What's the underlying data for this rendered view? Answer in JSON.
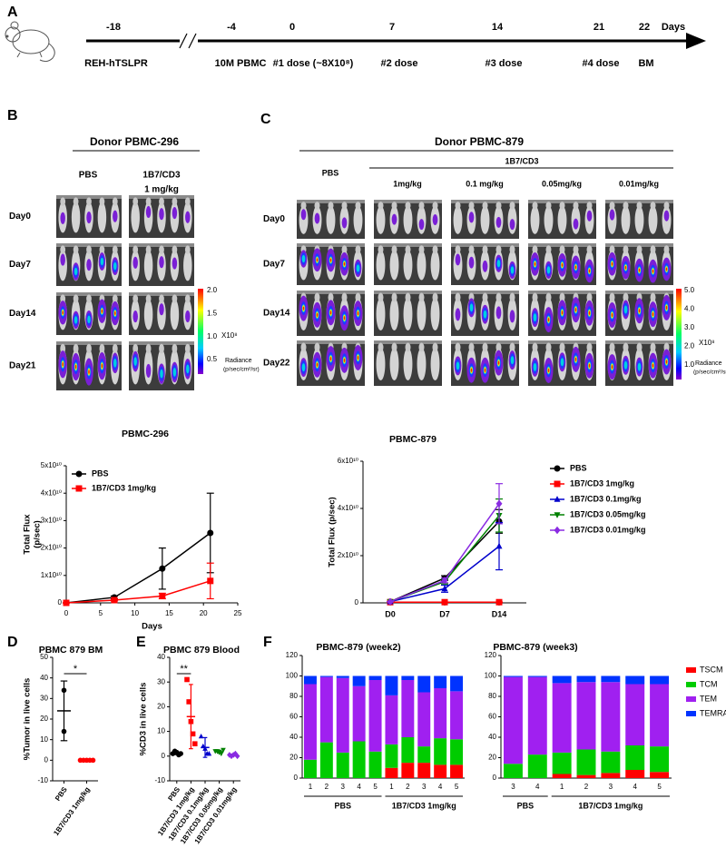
{
  "timeline": {
    "label": "A",
    "unit": "Days",
    "events": [
      {
        "day": "-18",
        "text": "REH-hTSLPR"
      },
      {
        "day": "-4",
        "text": "10M PBMC"
      },
      {
        "day": "0",
        "text": "#1 dose (~8X10⁸)"
      },
      {
        "day": "7",
        "text": "#2 dose"
      },
      {
        "day": "14",
        "text": "#3 dose"
      },
      {
        "day": "21",
        "text": "#4 dose"
      },
      {
        "day": "22",
        "text": "BM"
      }
    ]
  },
  "imaging": [
    {
      "label": "B",
      "title": "Donor PBMC-296",
      "columns": [
        "PBS",
        "1B7/CD3"
      ],
      "column_note": "1 mg/kg",
      "rows": [
        "Day0",
        "Day7",
        "Day14",
        "Day21"
      ],
      "colorbar": {
        "ticks": [
          "2.0",
          "1.5",
          "1.0",
          "0.5"
        ],
        "scale": "X10⁸",
        "label": "Radiance",
        "unit": "(p/sec/cm²/sr)"
      }
    },
    {
      "label": "C",
      "title": "Donor PBMC-879",
      "group": "1B7/CD3",
      "columns": [
        "PBS",
        "1mg/kg",
        "0.1 mg/kg",
        "0.05mg/kg",
        "0.01mg/kg"
      ],
      "rows": [
        "Day0",
        "Day7",
        "Day14",
        "Day22"
      ],
      "colorbar": {
        "ticks": [
          "5.0",
          "4.0",
          "3.0",
          "2.0",
          "1.0"
        ],
        "scale": "X10⁸",
        "label": "Radiance",
        "unit": "(p/sec/cm²/sr)"
      }
    }
  ],
  "chart_data": [
    {
      "type": "line",
      "title": "PBMC-296",
      "xlabel": "Days",
      "ylabel": [
        "Total Flux",
        "(p/sec)"
      ],
      "x": [
        0,
        7,
        14,
        21
      ],
      "xlim": [
        0,
        25
      ],
      "xticks": [
        0,
        5,
        10,
        15,
        20,
        25
      ],
      "ylim": [
        0,
        50000000000
      ],
      "yticks": [
        0,
        {
          "value": 10000000000,
          "label": "1x10¹⁰"
        },
        {
          "value": 20000000000,
          "label": "2x10¹⁰"
        },
        {
          "value": 30000000000,
          "label": "3x10¹⁰"
        },
        {
          "value": 40000000000,
          "label": "4x10¹⁰"
        },
        {
          "value": 50000000000,
          "label": "5x10¹⁰"
        }
      ],
      "legend": "upper left",
      "series": [
        {
          "name": "PBS",
          "color": "#000000",
          "marker": "circle",
          "values": [
            0,
            2000000000,
            12500000000,
            25500000000
          ],
          "errors": [
            0,
            500000000,
            7500000000,
            14500000000
          ]
        },
        {
          "name": "1B7/CD3 1mg/kg",
          "color": "#ff0000",
          "marker": "square",
          "values": [
            0,
            1000000000,
            2500000000,
            8000000000
          ],
          "errors": [
            0,
            300000000,
            1000000000,
            6500000000
          ]
        }
      ]
    },
    {
      "type": "line",
      "title": "PBMC-879",
      "ylabel": "Total Flux (p/sec)",
      "categories": [
        "D0",
        "D7",
        "D14"
      ],
      "ylim": [
        0,
        60000000000
      ],
      "yticks": [
        0,
        {
          "value": 20000000000,
          "label": "2x10¹⁰"
        },
        {
          "value": 40000000000,
          "label": "4x10¹⁰"
        },
        {
          "value": 60000000000,
          "label": "6x10¹⁰"
        }
      ],
      "legend": "right",
      "series": [
        {
          "name": "PBS",
          "color": "#000000",
          "marker": "circle",
          "values": [
            500000000,
            10500000000,
            34500000000
          ],
          "errors": [
            0,
            1000000000,
            5000000000
          ]
        },
        {
          "name": "1B7/CD3 1mg/kg",
          "color": "#ff0000",
          "marker": "square",
          "values": [
            300000000,
            300000000,
            300000000
          ],
          "errors": [
            0,
            0,
            0
          ]
        },
        {
          "name": "1B7/CD3 0.1mg/kg",
          "color": "#0000cc",
          "marker": "triangle-up",
          "values": [
            500000000,
            6000000000,
            24000000000
          ],
          "errors": [
            0,
            1500000000,
            10000000000
          ]
        },
        {
          "name": "1B7/CD3 0.05mg/kg",
          "color": "#008000",
          "marker": "triangle-down",
          "values": [
            500000000,
            9000000000,
            37000000000
          ],
          "errors": [
            0,
            1000000000,
            7000000000
          ]
        },
        {
          "name": "1B7/CD3 0.01mg/kg",
          "color": "#8a2be2",
          "marker": "diamond",
          "values": [
            500000000,
            9500000000,
            42000000000
          ],
          "errors": [
            0,
            1000000000,
            8500000000
          ]
        }
      ]
    },
    {
      "type": "dot",
      "panel": "D",
      "title": "PBMC 879 BM",
      "ylabel": "%Tumor in live cells",
      "categories": [
        "PBS",
        "1B7/CD3 1mg/kg"
      ],
      "ylim": [
        -10,
        50
      ],
      "yticks": [
        -10,
        0,
        10,
        20,
        30,
        40,
        50
      ],
      "annotation": "*",
      "groups": [
        {
          "color": "#000000",
          "marker": "circle",
          "values": [
            34,
            14
          ],
          "mean": 24,
          "sd": 14.5
        },
        {
          "color": "#ff0000",
          "marker": "circle",
          "values": [
            0,
            0,
            0,
            0,
            0
          ],
          "mean": 0,
          "sd": 0
        }
      ]
    },
    {
      "type": "dot",
      "panel": "E",
      "title": "PBMC 879 Blood",
      "ylabel": "%CD3 in live cells",
      "categories": [
        "PBS",
        "1B7/CD3 1mg/kg",
        "1B7/CD3 0.1mg/kg",
        "1B7/CD3 0.05mg/kg",
        "1B7/CD3 0.01mg/kg"
      ],
      "ylim": [
        -10,
        40
      ],
      "yticks": [
        -10,
        0,
        10,
        20,
        30,
        40
      ],
      "annotation": "**",
      "groups": [
        {
          "color": "#000000",
          "marker": "circle",
          "values": [
            1,
            2,
            1.5,
            0.5,
            1
          ],
          "mean": 1.2,
          "sd": 0.6
        },
        {
          "color": "#ff0000",
          "marker": "square",
          "values": [
            31,
            22,
            14,
            9,
            5
          ],
          "mean": 16,
          "sd": 13
        },
        {
          "color": "#0000cc",
          "marker": "triangle-up",
          "values": [
            8,
            4,
            3,
            1,
            1
          ],
          "mean": 3.5,
          "sd": 4
        },
        {
          "color": "#008000",
          "marker": "triangle-down",
          "values": [
            2,
            2,
            1.5,
            1,
            2.5
          ],
          "mean": 1.8,
          "sd": 0.6
        },
        {
          "color": "#8a2be2",
          "marker": "diamond",
          "values": [
            0.5,
            0,
            0.5,
            1,
            0
          ],
          "mean": 0.4,
          "sd": 0.4
        }
      ]
    },
    {
      "type": "stacked_bar",
      "panel": "F",
      "title": "PBMC-879  (week2)",
      "categories": [
        "1",
        "2",
        "3",
        "4",
        "5",
        "1",
        "2",
        "3",
        "4",
        "5"
      ],
      "groups": [
        "PBS",
        "1B7/CD3 1mg/kg"
      ],
      "ylim": [
        0,
        120
      ],
      "yticks": [
        0,
        20,
        40,
        60,
        80,
        100,
        120
      ],
      "series": [
        {
          "color": "#ff0000",
          "values": [
            0,
            0,
            0,
            0,
            0,
            10,
            15,
            15,
            13,
            13
          ]
        },
        {
          "color": "#00cc00",
          "values": [
            18,
            35,
            25,
            36,
            26,
            23,
            25,
            16,
            26,
            25
          ]
        },
        {
          "color": "#a020f0",
          "values": [
            74,
            64,
            73,
            54,
            70,
            48,
            56,
            53,
            49,
            47
          ]
        },
        {
          "color": "#0033ff",
          "values": [
            8,
            1,
            2,
            10,
            4,
            19,
            4,
            16,
            12,
            15
          ]
        }
      ]
    },
    {
      "type": "stacked_bar",
      "title": "PBMC-879  (week3)",
      "categories": [
        "3",
        "4",
        "1",
        "2",
        "3",
        "4",
        "5"
      ],
      "groups": [
        "PBS",
        "1B7/CD3 1mg/kg"
      ],
      "ylim": [
        0,
        120
      ],
      "yticks": [
        0,
        20,
        40,
        60,
        80,
        100,
        120
      ],
      "legend": "right",
      "series": [
        {
          "name": "TSCM",
          "color": "#ff0000",
          "values": [
            0,
            0,
            4,
            3,
            5,
            8,
            6
          ]
        },
        {
          "name": "TCM",
          "color": "#00cc00",
          "values": [
            14,
            23,
            21,
            25,
            21,
            24,
            25
          ]
        },
        {
          "name": "TEM",
          "color": "#a020f0",
          "values": [
            85,
            76,
            68,
            66,
            68,
            60,
            61
          ]
        },
        {
          "name": "TEMRA",
          "color": "#0033ff",
          "values": [
            1,
            1,
            7,
            6,
            6,
            8,
            8
          ]
        }
      ]
    }
  ]
}
